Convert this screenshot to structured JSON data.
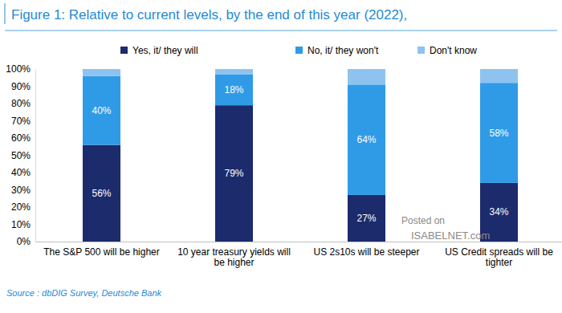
{
  "chart_data": {
    "type": "bar",
    "stacked": true,
    "title": "Figure 1: Relative to current levels, by the end of this year (2022),",
    "source": "Source : dbDIG Survey, Deutsche Bank",
    "annotations": [
      "Posted on",
      "ISABELNET.com"
    ],
    "categories": [
      "The S&P 500 will be higher",
      "10 year treasury yields will be higher",
      "US 2s10s will be steeper",
      "US Credit spreads will be tighter"
    ],
    "series": [
      {
        "name": "Yes, it/ they will",
        "color": "#1c2b6b",
        "values": [
          56,
          79,
          27,
          34
        ],
        "value_labels": [
          "56%",
          "79%",
          "27%",
          "34%"
        ],
        "data_labels": true
      },
      {
        "name": "No, it/ they won't",
        "color": "#2f9be6",
        "values": [
          40,
          18,
          64,
          58
        ],
        "value_labels": [
          "40%",
          "18%",
          "64%",
          "58%"
        ],
        "data_labels": true
      },
      {
        "name": "Don't know",
        "color": "#8ec3f0",
        "values": [
          4,
          3,
          9,
          8
        ],
        "data_labels": false
      }
    ],
    "ylim": [
      0,
      100
    ],
    "yticks": [
      {
        "value": 0,
        "label": "0%"
      },
      {
        "value": 10,
        "label": "10%"
      },
      {
        "value": 20,
        "label": "20%"
      },
      {
        "value": 30,
        "label": "30%"
      },
      {
        "value": 40,
        "label": "40%"
      },
      {
        "value": 50,
        "label": "50%"
      },
      {
        "value": 60,
        "label": "60%"
      },
      {
        "value": 70,
        "label": "70%"
      },
      {
        "value": 80,
        "label": "80%"
      },
      {
        "value": 90,
        "label": "90%"
      },
      {
        "value": 100,
        "label": "100%"
      }
    ],
    "grid": false,
    "legend": "top"
  }
}
